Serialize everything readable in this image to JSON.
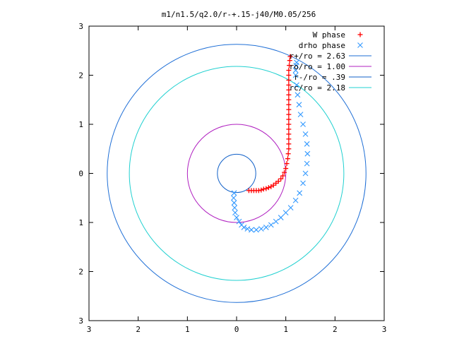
{
  "chart_data": {
    "type": "scatter",
    "title": "m1/n1.5/q2.0/r-+.15-j40/M0.05/256",
    "xlim": [
      -3,
      3
    ],
    "ylim": [
      -3,
      3
    ],
    "x_tick_labels": [
      "3",
      "2",
      "1",
      "0",
      "1",
      "2",
      "3"
    ],
    "y_tick_labels": [
      "3",
      "2",
      "1",
      "0",
      "1",
      "2",
      "3"
    ],
    "grid": false,
    "legend_position": "top-right",
    "series": [
      {
        "name": "W phase",
        "kind": "points",
        "marker": "plus",
        "color": "#ff0000",
        "points": [
          [
            0.25,
            -0.35
          ],
          [
            0.3,
            -0.35
          ],
          [
            0.35,
            -0.35
          ],
          [
            0.4,
            -0.35
          ],
          [
            0.45,
            -0.35
          ],
          [
            0.5,
            -0.34
          ],
          [
            0.55,
            -0.32
          ],
          [
            0.6,
            -0.31
          ],
          [
            0.65,
            -0.29
          ],
          [
            0.7,
            -0.27
          ],
          [
            0.75,
            -0.24
          ],
          [
            0.8,
            -0.2
          ],
          [
            0.85,
            -0.16
          ],
          [
            0.9,
            -0.11
          ],
          [
            0.94,
            -0.05
          ],
          [
            0.97,
            0.02
          ],
          [
            1.0,
            0.1
          ],
          [
            1.02,
            0.2
          ],
          [
            1.04,
            0.3
          ],
          [
            1.05,
            0.4
          ],
          [
            1.06,
            0.5
          ],
          [
            1.06,
            0.6
          ],
          [
            1.06,
            0.7
          ],
          [
            1.06,
            0.8
          ],
          [
            1.06,
            0.9
          ],
          [
            1.06,
            1.0
          ],
          [
            1.06,
            1.1
          ],
          [
            1.06,
            1.2
          ],
          [
            1.06,
            1.3
          ],
          [
            1.06,
            1.4
          ],
          [
            1.06,
            1.5
          ],
          [
            1.06,
            1.6
          ],
          [
            1.06,
            1.7
          ],
          [
            1.06,
            1.8
          ],
          [
            1.06,
            1.9
          ],
          [
            1.06,
            2.0
          ],
          [
            1.06,
            2.1
          ],
          [
            1.07,
            2.2
          ],
          [
            1.08,
            2.3
          ],
          [
            1.09,
            2.38
          ]
        ]
      },
      {
        "name": "drho phase",
        "kind": "points",
        "marker": "cross",
        "color": "#3399ff",
        "points": [
          [
            -0.05,
            -0.4
          ],
          [
            -0.06,
            -0.5
          ],
          [
            -0.05,
            -0.6
          ],
          [
            -0.04,
            -0.7
          ],
          [
            -0.03,
            -0.8
          ],
          [
            0.0,
            -0.9
          ],
          [
            0.05,
            -0.98
          ],
          [
            0.1,
            -1.05
          ],
          [
            0.15,
            -1.1
          ],
          [
            0.22,
            -1.13
          ],
          [
            0.3,
            -1.15
          ],
          [
            0.4,
            -1.15
          ],
          [
            0.5,
            -1.13
          ],
          [
            0.6,
            -1.1
          ],
          [
            0.7,
            -1.05
          ],
          [
            0.8,
            -0.98
          ],
          [
            0.9,
            -0.9
          ],
          [
            1.0,
            -0.8
          ],
          [
            1.1,
            -0.7
          ],
          [
            1.2,
            -0.55
          ],
          [
            1.28,
            -0.4
          ],
          [
            1.35,
            -0.2
          ],
          [
            1.4,
            0.0
          ],
          [
            1.43,
            0.2
          ],
          [
            1.44,
            0.4
          ],
          [
            1.43,
            0.6
          ],
          [
            1.4,
            0.8
          ],
          [
            1.35,
            1.0
          ],
          [
            1.3,
            1.2
          ],
          [
            1.27,
            1.4
          ],
          [
            1.24,
            1.6
          ],
          [
            1.22,
            1.8
          ],
          [
            1.2,
            2.0
          ],
          [
            1.2,
            2.1
          ],
          [
            1.21,
            2.2
          ],
          [
            1.22,
            2.26
          ]
        ]
      },
      {
        "name": "r+/ro = 2.63",
        "kind": "circle",
        "radius": 2.63,
        "color": "#1f6fd6"
      },
      {
        "name": "ro/ro = 1.00",
        "kind": "circle",
        "radius": 1.0,
        "color": "#b020c0"
      },
      {
        "name": "r-/ro = .39",
        "kind": "circle",
        "radius": 0.39,
        "color": "#1060c8"
      },
      {
        "name": "rc/ro = 2.18",
        "kind": "circle",
        "radius": 2.18,
        "color": "#20d0d0"
      }
    ]
  }
}
